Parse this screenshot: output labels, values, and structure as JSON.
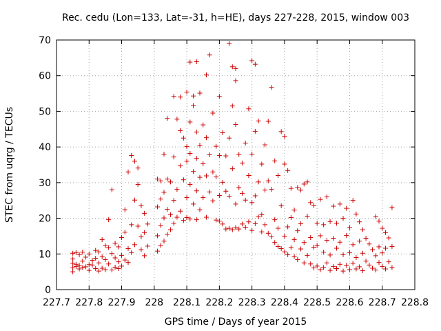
{
  "chart_data": {
    "type": "scatter",
    "title": "Rec. cedu (Lon=133, Lat=-31, h=HE), days 227-228, 2015, window 003",
    "xlabel": "GPS time / Days of year 2015",
    "ylabel": "STEC from uqrg / TECUs",
    "xlim": [
      227.7,
      228.8
    ],
    "ylim": [
      0,
      70
    ],
    "x_ticks": [
      "227.7",
      "227.8",
      "227.9",
      "228",
      "228.1",
      "228.2",
      "228.3",
      "228.4",
      "228.5",
      "228.6",
      "228.7",
      "228.8"
    ],
    "y_ticks": [
      "0",
      "10",
      "20",
      "30",
      "40",
      "50",
      "60",
      "70"
    ],
    "grid": true,
    "marker": "+",
    "marker_color": "#cc0000",
    "series": [
      {
        "name": "",
        "points": [
          [
            227.75,
            10.2
          ],
          [
            227.75,
            8.6
          ],
          [
            227.75,
            7.4
          ],
          [
            227.75,
            6.1
          ],
          [
            227.75,
            5.0
          ],
          [
            227.76,
            10.4
          ],
          [
            227.76,
            7.1
          ],
          [
            227.76,
            6.5
          ],
          [
            227.77,
            9.8
          ],
          [
            227.77,
            6.8
          ],
          [
            227.77,
            5.8
          ],
          [
            227.78,
            10.5
          ],
          [
            227.78,
            8.0
          ],
          [
            227.78,
            6.2
          ],
          [
            227.79,
            9.1
          ],
          [
            227.79,
            6.4
          ],
          [
            227.8,
            10.0
          ],
          [
            227.8,
            7.0
          ],
          [
            227.8,
            5.4
          ],
          [
            227.81,
            8.2
          ],
          [
            227.81,
            6.9
          ],
          [
            227.82,
            11.0
          ],
          [
            227.82,
            8.8
          ],
          [
            227.82,
            5.9
          ],
          [
            227.83,
            10.6
          ],
          [
            227.83,
            7.5
          ],
          [
            227.83,
            5.2
          ],
          [
            227.84,
            14.0
          ],
          [
            227.84,
            9.2
          ],
          [
            227.84,
            6.0
          ],
          [
            227.85,
            12.3
          ],
          [
            227.85,
            8.4
          ],
          [
            227.85,
            5.6
          ],
          [
            227.86,
            19.6
          ],
          [
            227.86,
            11.8
          ],
          [
            227.86,
            7.2
          ],
          [
            227.87,
            28.0
          ],
          [
            227.87,
            10.1
          ],
          [
            227.87,
            5.5
          ],
          [
            227.88,
            13.0
          ],
          [
            227.88,
            8.9
          ],
          [
            227.88,
            6.3
          ],
          [
            227.89,
            12.0
          ],
          [
            227.89,
            7.8
          ],
          [
            227.89,
            5.9
          ],
          [
            227.9,
            14.6
          ],
          [
            227.9,
            9.6
          ],
          [
            227.9,
            6.6
          ],
          [
            227.91,
            22.4
          ],
          [
            227.91,
            16.1
          ],
          [
            227.91,
            8.3
          ],
          [
            227.92,
            33.0
          ],
          [
            227.92,
            11.5
          ],
          [
            227.92,
            7.6
          ],
          [
            227.93,
            37.6
          ],
          [
            227.93,
            18.2
          ],
          [
            227.93,
            10.4
          ],
          [
            227.94,
            36.0
          ],
          [
            227.94,
            25.1
          ],
          [
            227.94,
            12.6
          ],
          [
            227.95,
            34.1
          ],
          [
            227.95,
            29.5
          ],
          [
            227.95,
            17.8
          ],
          [
            227.96,
            23.5
          ],
          [
            227.96,
            14.8
          ],
          [
            227.96,
            11.2
          ],
          [
            227.97,
            21.4
          ],
          [
            227.97,
            16.0
          ],
          [
            227.97,
            9.5
          ],
          [
            227.98,
            18.4
          ],
          [
            227.98,
            12.2
          ],
          [
            228.01,
            31.0
          ],
          [
            228.01,
            23.2
          ],
          [
            228.01,
            15.1
          ],
          [
            228.01,
            10.8
          ],
          [
            228.02,
            30.5
          ],
          [
            228.02,
            25.4
          ],
          [
            228.02,
            18.0
          ],
          [
            228.02,
            12.4
          ],
          [
            228.03,
            38.0
          ],
          [
            228.03,
            27.3
          ],
          [
            228.03,
            20.1
          ],
          [
            228.03,
            13.6
          ],
          [
            228.04,
            48.0
          ],
          [
            228.04,
            31.0
          ],
          [
            228.04,
            22.5
          ],
          [
            228.04,
            15.5
          ],
          [
            228.05,
            30.2
          ],
          [
            228.05,
            21.0
          ],
          [
            228.05,
            16.8
          ],
          [
            228.06,
            54.2
          ],
          [
            228.06,
            37.2
          ],
          [
            228.06,
            25.0
          ],
          [
            228.06,
            18.6
          ],
          [
            228.07,
            47.8
          ],
          [
            228.07,
            28.1
          ],
          [
            228.07,
            20.3
          ],
          [
            228.08,
            54.0
          ],
          [
            228.08,
            44.6
          ],
          [
            228.08,
            34.7
          ],
          [
            228.08,
            22.0
          ],
          [
            228.09,
            42.5
          ],
          [
            228.09,
            30.8
          ],
          [
            228.09,
            19.4
          ],
          [
            228.1,
            55.4
          ],
          [
            228.1,
            40.1
          ],
          [
            228.1,
            36.0
          ],
          [
            228.1,
            25.8
          ],
          [
            228.1,
            20.2
          ],
          [
            228.11,
            63.8
          ],
          [
            228.11,
            47.0
          ],
          [
            228.11,
            38.2
          ],
          [
            228.11,
            29.5
          ],
          [
            228.11,
            19.8
          ],
          [
            228.12,
            54.3
          ],
          [
            228.12,
            51.6
          ],
          [
            228.12,
            33.1
          ],
          [
            228.12,
            24.0
          ],
          [
            228.13,
            63.9
          ],
          [
            228.13,
            44.2
          ],
          [
            228.13,
            36.8
          ],
          [
            228.13,
            27.7
          ],
          [
            228.13,
            19.6
          ],
          [
            228.14,
            55.1
          ],
          [
            228.14,
            40.5
          ],
          [
            228.14,
            31.5
          ],
          [
            228.14,
            22.4
          ],
          [
            228.15,
            46.2
          ],
          [
            228.15,
            35.3
          ],
          [
            228.15,
            25.8
          ],
          [
            228.16,
            60.2
          ],
          [
            228.16,
            42.6
          ],
          [
            228.16,
            31.9
          ],
          [
            228.16,
            20.3
          ],
          [
            228.17,
            65.8
          ],
          [
            228.17,
            37.8
          ],
          [
            228.17,
            27.4
          ],
          [
            228.18,
            49.5
          ],
          [
            228.18,
            33.0
          ],
          [
            228.18,
            24.9
          ],
          [
            228.19,
            40.2
          ],
          [
            228.19,
            31.6
          ],
          [
            228.19,
            19.5
          ],
          [
            228.2,
            54.2
          ],
          [
            228.2,
            37.6
          ],
          [
            228.2,
            26.4
          ],
          [
            228.2,
            19.2
          ],
          [
            228.21,
            44.0
          ],
          [
            228.21,
            30.1
          ],
          [
            228.21,
            18.4
          ],
          [
            228.22,
            37.5
          ],
          [
            228.22,
            27.6
          ],
          [
            228.22,
            17.0
          ],
          [
            228.23,
            69.0
          ],
          [
            228.23,
            42.5
          ],
          [
            228.23,
            26.2
          ],
          [
            228.23,
            17.2
          ],
          [
            228.24,
            62.5
          ],
          [
            228.24,
            51.5
          ],
          [
            228.24,
            33.9
          ],
          [
            228.24,
            16.8
          ],
          [
            228.25,
            62.0
          ],
          [
            228.25,
            58.6
          ],
          [
            228.25,
            46.3
          ],
          [
            228.25,
            24.0
          ],
          [
            228.25,
            17.4
          ],
          [
            228.26,
            37.9
          ],
          [
            228.26,
            28.6
          ],
          [
            228.26,
            17.0
          ],
          [
            228.27,
            35.5
          ],
          [
            228.27,
            27.0
          ],
          [
            228.27,
            18.4
          ],
          [
            228.28,
            41.1
          ],
          [
            228.28,
            25.1
          ],
          [
            228.28,
            17.5
          ],
          [
            228.29,
            50.7
          ],
          [
            228.29,
            32.0
          ],
          [
            228.29,
            19.0
          ],
          [
            228.3,
            64.2
          ],
          [
            228.3,
            38.0
          ],
          [
            228.3,
            24.4
          ],
          [
            228.3,
            16.6
          ],
          [
            228.31,
            63.2
          ],
          [
            228.31,
            44.4
          ],
          [
            228.31,
            26.3
          ],
          [
            228.31,
            18.5
          ],
          [
            228.32,
            47.3
          ],
          [
            228.32,
            30.2
          ],
          [
            228.32,
            20.4
          ],
          [
            228.33,
            35.2
          ],
          [
            228.33,
            21.0
          ],
          [
            228.33,
            16.2
          ],
          [
            228.34,
            40.6
          ],
          [
            228.34,
            27.9
          ],
          [
            228.34,
            18.2
          ],
          [
            228.35,
            47.2
          ],
          [
            228.35,
            30.5
          ],
          [
            228.35,
            15.8
          ],
          [
            228.36,
            56.7
          ],
          [
            228.36,
            28.1
          ],
          [
            228.36,
            14.8
          ],
          [
            228.37,
            36.1
          ],
          [
            228.37,
            19.6
          ],
          [
            228.37,
            13.2
          ],
          [
            228.38,
            32.0
          ],
          [
            228.38,
            17.2
          ],
          [
            228.38,
            12.1
          ],
          [
            228.39,
            44.3
          ],
          [
            228.39,
            23.5
          ],
          [
            228.39,
            11.5
          ],
          [
            228.4,
            43.0
          ],
          [
            228.4,
            35.2
          ],
          [
            228.4,
            15.0
          ],
          [
            228.4,
            10.6
          ],
          [
            228.41,
            33.4
          ],
          [
            228.41,
            17.6
          ],
          [
            228.41,
            9.8
          ],
          [
            228.42,
            28.4
          ],
          [
            228.42,
            20.2
          ],
          [
            228.42,
            11.8
          ],
          [
            228.43,
            22.3
          ],
          [
            228.43,
            14.0
          ],
          [
            228.43,
            9.3
          ],
          [
            228.44,
            28.6
          ],
          [
            228.44,
            16.5
          ],
          [
            228.44,
            8.4
          ],
          [
            228.45,
            27.9
          ],
          [
            228.45,
            18.5
          ],
          [
            228.45,
            11.4
          ],
          [
            228.46,
            29.6
          ],
          [
            228.46,
            13.2
          ],
          [
            228.46,
            7.5
          ],
          [
            228.47,
            30.2
          ],
          [
            228.47,
            20.6
          ],
          [
            228.47,
            9.6
          ],
          [
            228.48,
            24.4
          ],
          [
            228.48,
            14.6
          ],
          [
            228.48,
            7.2
          ],
          [
            228.49,
            23.6
          ],
          [
            228.49,
            11.9
          ],
          [
            228.49,
            6.1
          ],
          [
            228.5,
            18.6
          ],
          [
            228.5,
            12.4
          ],
          [
            228.5,
            6.6
          ],
          [
            228.51,
            25.3
          ],
          [
            228.51,
            15.1
          ],
          [
            228.51,
            5.6
          ],
          [
            228.52,
            18.2
          ],
          [
            228.52,
            10.5
          ],
          [
            228.52,
            6.2
          ],
          [
            228.53,
            26.0
          ],
          [
            228.53,
            13.8
          ],
          [
            228.53,
            7.5
          ],
          [
            228.54,
            19.1
          ],
          [
            228.54,
            9.7
          ],
          [
            228.54,
            5.4
          ],
          [
            228.55,
            23.4
          ],
          [
            228.55,
            14.4
          ],
          [
            228.55,
            6.5
          ],
          [
            228.56,
            18.6
          ],
          [
            228.56,
            11.6
          ],
          [
            228.56,
            5.9
          ],
          [
            228.57,
            24.0
          ],
          [
            228.57,
            13.3
          ],
          [
            228.57,
            7.1
          ],
          [
            228.58,
            20.0
          ],
          [
            228.58,
            9.8
          ],
          [
            228.58,
            5.2
          ],
          [
            228.59,
            22.8
          ],
          [
            228.59,
            15.2
          ],
          [
            228.59,
            6.8
          ],
          [
            228.6,
            17.4
          ],
          [
            228.6,
            10.4
          ],
          [
            228.6,
            5.6
          ],
          [
            228.61,
            25.0
          ],
          [
            228.61,
            12.6
          ],
          [
            228.61,
            7.4
          ],
          [
            228.62,
            21.2
          ],
          [
            228.62,
            9.0
          ],
          [
            228.62,
            5.8
          ],
          [
            228.63,
            19.0
          ],
          [
            228.63,
            13.6
          ],
          [
            228.63,
            6.4
          ],
          [
            228.64,
            16.8
          ],
          [
            228.64,
            10.2
          ],
          [
            228.64,
            5.3
          ],
          [
            228.65,
            14.4
          ],
          [
            228.65,
            8.0
          ],
          [
            228.66,
            12.8
          ],
          [
            228.66,
            6.9
          ],
          [
            228.67,
            11.2
          ],
          [
            228.67,
            6.0
          ],
          [
            228.68,
            20.5
          ],
          [
            228.68,
            9.5
          ],
          [
            228.68,
            5.5
          ],
          [
            228.69,
            19.2
          ],
          [
            228.69,
            12.0
          ],
          [
            228.69,
            7.6
          ],
          [
            228.7,
            17.2
          ],
          [
            228.7,
            10.3
          ],
          [
            228.7,
            6.5
          ],
          [
            228.71,
            16.0
          ],
          [
            228.71,
            11.6
          ],
          [
            228.71,
            5.8
          ],
          [
            228.72,
            14.5
          ],
          [
            228.72,
            7.8
          ],
          [
            228.73,
            23.0
          ],
          [
            228.73,
            12.1
          ],
          [
            228.73,
            6.2
          ]
        ]
      }
    ]
  }
}
